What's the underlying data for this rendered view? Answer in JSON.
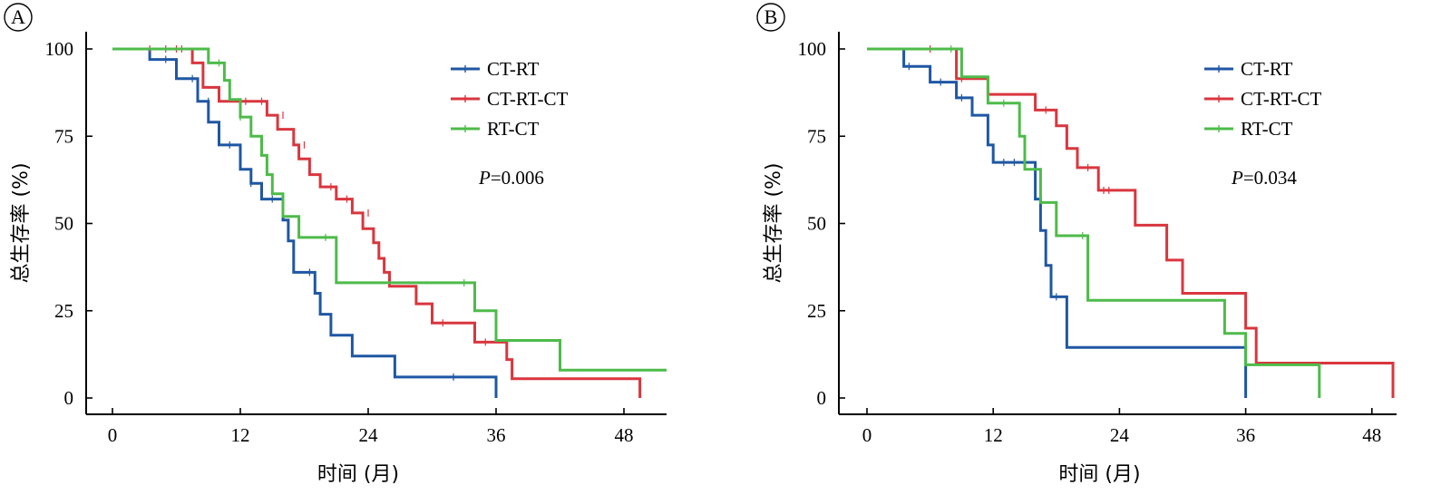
{
  "colors": {
    "CT-RT": "#1f57a3",
    "CT-RT-CT": "#d9363e",
    "RT-CT": "#4dbb4a"
  },
  "chart_data": [
    {
      "type": "line",
      "panel_label": "A",
      "xlabel": "时间 (月)",
      "ylabel": "总生存率 (%)",
      "xticks": [
        0,
        12,
        24,
        36,
        48
      ],
      "yticks": [
        0,
        25,
        50,
        75,
        100
      ],
      "xlim": [
        0,
        52
      ],
      "ylim": [
        0,
        100
      ],
      "pvalue_prefix": "P",
      "pvalue_text": "=0.006",
      "legend_position": "top-right",
      "grid": false,
      "series": [
        {
          "name": "CT-RT",
          "color_key": "CT-RT",
          "points": [
            [
              0,
              100
            ],
            [
              3.5,
              100
            ],
            [
              3.5,
              97
            ],
            [
              6,
              97
            ],
            [
              6,
              91.5
            ],
            [
              8,
              91.5
            ],
            [
              8,
              85
            ],
            [
              9,
              85
            ],
            [
              9,
              79
            ],
            [
              10,
              79
            ],
            [
              10,
              72.5
            ],
            [
              12,
              72.5
            ],
            [
              12,
              65.5
            ],
            [
              13,
              65.5
            ],
            [
              13,
              61.5
            ],
            [
              14,
              61.5
            ],
            [
              14,
              57
            ],
            [
              16,
              57
            ],
            [
              16,
              51
            ],
            [
              16.5,
              51
            ],
            [
              16.5,
              45
            ],
            [
              17,
              45
            ],
            [
              17,
              36
            ],
            [
              19,
              36
            ],
            [
              19,
              30
            ],
            [
              19.5,
              30
            ],
            [
              19.5,
              24
            ],
            [
              20.5,
              24
            ],
            [
              20.5,
              18
            ],
            [
              22.5,
              18
            ],
            [
              22.5,
              12
            ],
            [
              26.5,
              12
            ],
            [
              26.5,
              6
            ],
            [
              36,
              6
            ],
            [
              36,
              0
            ]
          ],
          "censors": [
            [
              5,
              97
            ],
            [
              7.5,
              91.5
            ],
            [
              9,
              85
            ],
            [
              11,
              72.5
            ],
            [
              13,
              61.5
            ],
            [
              15,
              57
            ],
            [
              18.5,
              36
            ],
            [
              32,
              6
            ]
          ]
        },
        {
          "name": "CT-RT-CT",
          "color_key": "CT-RT-CT",
          "points": [
            [
              0,
              100
            ],
            [
              7.5,
              100
            ],
            [
              7.5,
              96
            ],
            [
              8.5,
              96
            ],
            [
              8.5,
              89
            ],
            [
              10,
              89
            ],
            [
              10,
              85
            ],
            [
              14.5,
              85
            ],
            [
              14.5,
              81
            ],
            [
              15.5,
              81
            ],
            [
              15.5,
              77
            ],
            [
              17,
              77
            ],
            [
              17,
              72.5
            ],
            [
              17.5,
              72.5
            ],
            [
              17.5,
              68.5
            ],
            [
              18.5,
              68.5
            ],
            [
              18.5,
              64
            ],
            [
              19.5,
              64
            ],
            [
              19.5,
              60.5
            ],
            [
              21,
              60.5
            ],
            [
              21,
              57
            ],
            [
              22.5,
              57
            ],
            [
              22.5,
              53
            ],
            [
              23.5,
              53
            ],
            [
              23.5,
              48.5
            ],
            [
              24.5,
              48.5
            ],
            [
              24.5,
              44.5
            ],
            [
              25,
              44.5
            ],
            [
              25,
              40
            ],
            [
              25.5,
              40
            ],
            [
              25.5,
              36
            ],
            [
              26,
              36
            ],
            [
              26,
              32
            ],
            [
              28.5,
              32
            ],
            [
              28.5,
              27
            ],
            [
              30,
              27
            ],
            [
              30,
              21.5
            ],
            [
              34,
              21.5
            ],
            [
              34,
              16
            ],
            [
              37,
              16
            ],
            [
              37,
              11
            ],
            [
              37.5,
              11
            ],
            [
              37.5,
              5.5
            ],
            [
              49.5,
              5.5
            ],
            [
              49.5,
              0
            ]
          ],
          "censors": [
            [
              3.5,
              100
            ],
            [
              5,
              100
            ],
            [
              6,
              100
            ],
            [
              6.5,
              100
            ],
            [
              12.5,
              85
            ],
            [
              14,
              85
            ],
            [
              16,
              81
            ],
            [
              18,
              72.5
            ],
            [
              20.5,
              60.5
            ],
            [
              22,
              57
            ],
            [
              24,
              53
            ],
            [
              31,
              21.5
            ],
            [
              35,
              16
            ]
          ]
        },
        {
          "name": "RT-CT",
          "color_key": "RT-CT",
          "points": [
            [
              0,
              100
            ],
            [
              9,
              100
            ],
            [
              9,
              96
            ],
            [
              10.5,
              96
            ],
            [
              10.5,
              91
            ],
            [
              11,
              91
            ],
            [
              11,
              85.5
            ],
            [
              12,
              85.5
            ],
            [
              12,
              80.5
            ],
            [
              13,
              80.5
            ],
            [
              13,
              75
            ],
            [
              14,
              75
            ],
            [
              14,
              69.5
            ],
            [
              14.5,
              69.5
            ],
            [
              14.5,
              64
            ],
            [
              15,
              64
            ],
            [
              15,
              58.5
            ],
            [
              16,
              58.5
            ],
            [
              16,
              52
            ],
            [
              17.5,
              52
            ],
            [
              17.5,
              46
            ],
            [
              21,
              46
            ],
            [
              21,
              33
            ],
            [
              34,
              33
            ],
            [
              34,
              25
            ],
            [
              36,
              25
            ],
            [
              36,
              16.5
            ],
            [
              42,
              16.5
            ],
            [
              42,
              8
            ],
            [
              52,
              8
            ]
          ],
          "censors": [
            [
              10,
              96
            ],
            [
              12,
              80.5
            ],
            [
              20,
              46
            ],
            [
              33,
              33
            ]
          ]
        }
      ]
    },
    {
      "type": "line",
      "panel_label": "B",
      "xlabel": "时间 (月)",
      "ylabel": "总生存率 (%)",
      "xticks": [
        0,
        12,
        24,
        36,
        48
      ],
      "yticks": [
        0,
        25,
        50,
        75,
        100
      ],
      "xlim": [
        0,
        50
      ],
      "ylim": [
        0,
        100
      ],
      "pvalue_prefix": "P",
      "pvalue_text": "=0.034",
      "legend_position": "top-right",
      "grid": false,
      "series": [
        {
          "name": "CT-RT",
          "color_key": "CT-RT",
          "points": [
            [
              0,
              100
            ],
            [
              3.5,
              100
            ],
            [
              3.5,
              95
            ],
            [
              6,
              95
            ],
            [
              6,
              90.5
            ],
            [
              8.5,
              90.5
            ],
            [
              8.5,
              86
            ],
            [
              10,
              86
            ],
            [
              10,
              81
            ],
            [
              11.5,
              81
            ],
            [
              11.5,
              72.5
            ],
            [
              12,
              72.5
            ],
            [
              12,
              67.5
            ],
            [
              16,
              67.5
            ],
            [
              16,
              57
            ],
            [
              16.5,
              57
            ],
            [
              16.5,
              48
            ],
            [
              17,
              48
            ],
            [
              17,
              38
            ],
            [
              17.5,
              38
            ],
            [
              17.5,
              29
            ],
            [
              19,
              29
            ],
            [
              19,
              14.5
            ],
            [
              36,
              14.5
            ],
            [
              36,
              0
            ]
          ],
          "censors": [
            [
              4,
              95
            ],
            [
              7,
              90.5
            ],
            [
              9,
              86
            ],
            [
              13,
              67.5
            ],
            [
              14,
              67.5
            ],
            [
              15,
              67.5
            ],
            [
              18,
              29
            ]
          ]
        },
        {
          "name": "CT-RT-CT",
          "color_key": "CT-RT-CT",
          "points": [
            [
              0,
              100
            ],
            [
              8.5,
              100
            ],
            [
              8.5,
              91.5
            ],
            [
              11.5,
              91.5
            ],
            [
              11.5,
              87
            ],
            [
              16,
              87
            ],
            [
              16,
              82.5
            ],
            [
              18,
              82.5
            ],
            [
              18,
              78
            ],
            [
              19,
              78
            ],
            [
              19,
              71.5
            ],
            [
              20,
              71.5
            ],
            [
              20,
              66
            ],
            [
              22,
              66
            ],
            [
              22,
              59.5
            ],
            [
              25.5,
              59.5
            ],
            [
              25.5,
              49.5
            ],
            [
              28.5,
              49.5
            ],
            [
              28.5,
              39.5
            ],
            [
              30,
              39.5
            ],
            [
              30,
              30
            ],
            [
              36,
              30
            ],
            [
              36,
              20
            ],
            [
              37,
              20
            ],
            [
              37,
              10
            ],
            [
              50,
              10
            ],
            [
              50,
              0
            ]
          ],
          "censors": [
            [
              6,
              100
            ],
            [
              9,
              91.5
            ],
            [
              17,
              82.5
            ],
            [
              21,
              66
            ],
            [
              22.5,
              59.5
            ],
            [
              23,
              59.5
            ]
          ]
        },
        {
          "name": "RT-CT",
          "color_key": "RT-CT",
          "points": [
            [
              0,
              100
            ],
            [
              9,
              100
            ],
            [
              9,
              92
            ],
            [
              11.5,
              92
            ],
            [
              11.5,
              84.5
            ],
            [
              14.5,
              84.5
            ],
            [
              14.5,
              75
            ],
            [
              15,
              75
            ],
            [
              15,
              65.5
            ],
            [
              16.5,
              65.5
            ],
            [
              16.5,
              56
            ],
            [
              18,
              56
            ],
            [
              18,
              46.5
            ],
            [
              21,
              46.5
            ],
            [
              21,
              28
            ],
            [
              34,
              28
            ],
            [
              34,
              18.5
            ],
            [
              36,
              18.5
            ],
            [
              36,
              9.5
            ],
            [
              43,
              9.5
            ],
            [
              43,
              0
            ]
          ],
          "censors": [
            [
              8,
              100
            ],
            [
              13,
              84.5
            ],
            [
              20.5,
              46.5
            ]
          ]
        }
      ]
    }
  ]
}
